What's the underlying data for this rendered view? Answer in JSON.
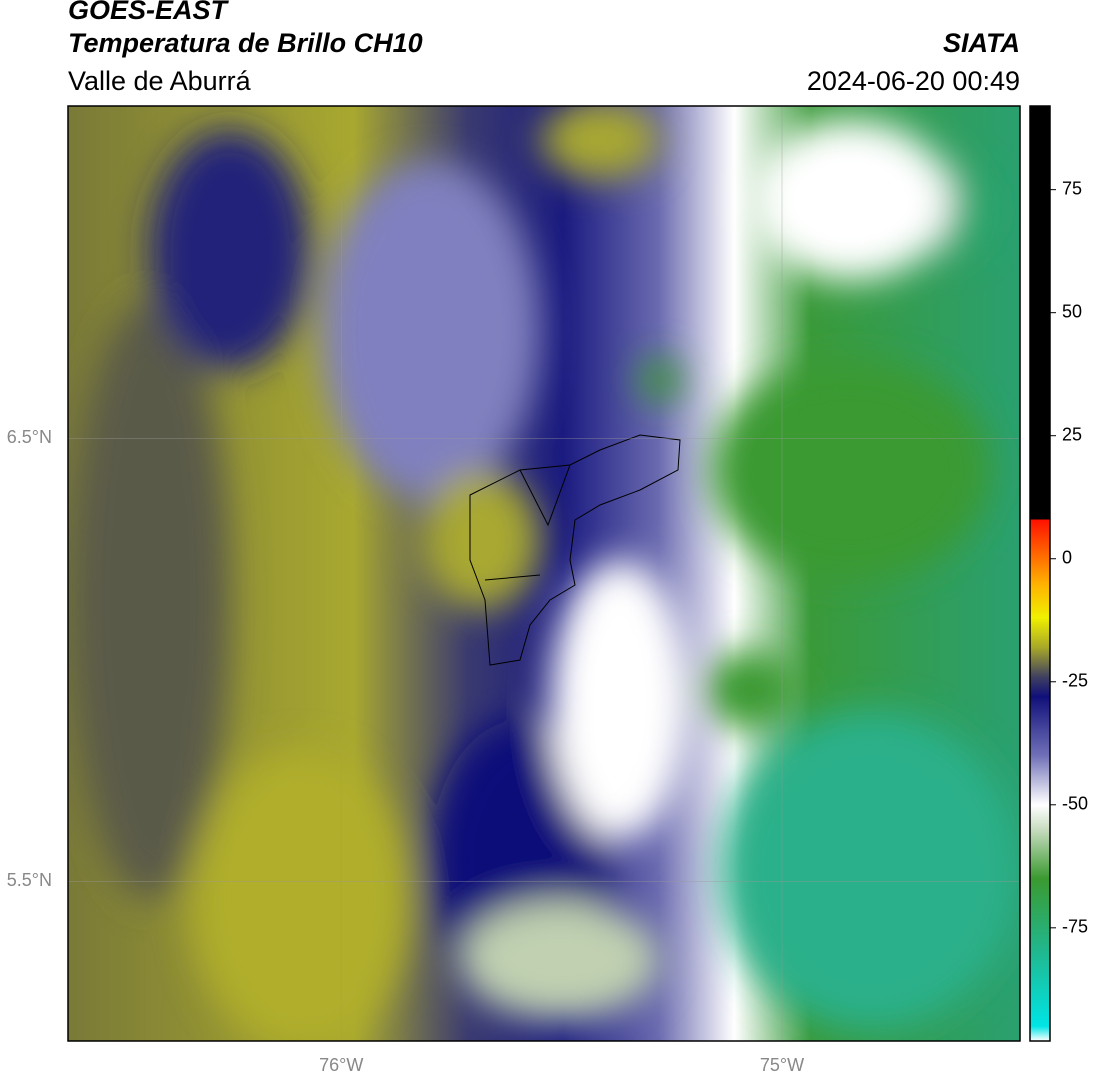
{
  "header": {
    "title": "GOES-EAST",
    "subtitle": "Temperatura de Brillo CH10",
    "region": "Valle de Aburrá",
    "source": "SIATA",
    "timestamp": "2024-06-20 00:49"
  },
  "map": {
    "xlim": [
      -76.62,
      -74.46
    ],
    "ylim": [
      5.14,
      7.25
    ],
    "xticks": [
      {
        "value": -76,
        "label": "76°W"
      },
      {
        "value": -75,
        "label": "75°W"
      }
    ],
    "yticks": [
      {
        "value": 6.5,
        "label": "6.5°N"
      },
      {
        "value": 5.5,
        "label": "5.5°N"
      }
    ]
  },
  "colorbar": {
    "lim": [
      -98,
      92
    ],
    "ticks": [
      75,
      50,
      25,
      0,
      -25,
      -50,
      -75
    ],
    "stops": [
      {
        "value": -98,
        "color": "#ffffff"
      },
      {
        "value": -95,
        "color": "#00e5e5"
      },
      {
        "value": -80,
        "color": "#20b890"
      },
      {
        "value": -65,
        "color": "#3a9a30"
      },
      {
        "value": -55,
        "color": "#c8dcc0"
      },
      {
        "value": -50,
        "color": "#ffffff"
      },
      {
        "value": -40,
        "color": "#7070b8"
      },
      {
        "value": -28,
        "color": "#10107a"
      },
      {
        "value": -24,
        "color": "#404060"
      },
      {
        "value": -18,
        "color": "#a8a828"
      },
      {
        "value": -12,
        "color": "#f0f000"
      },
      {
        "value": -5,
        "color": "#ffb000"
      },
      {
        "value": 8,
        "color": "#ff1000"
      },
      {
        "value": 8,
        "color": "#000000"
      },
      {
        "value": 92,
        "color": "#000000"
      }
    ]
  }
}
